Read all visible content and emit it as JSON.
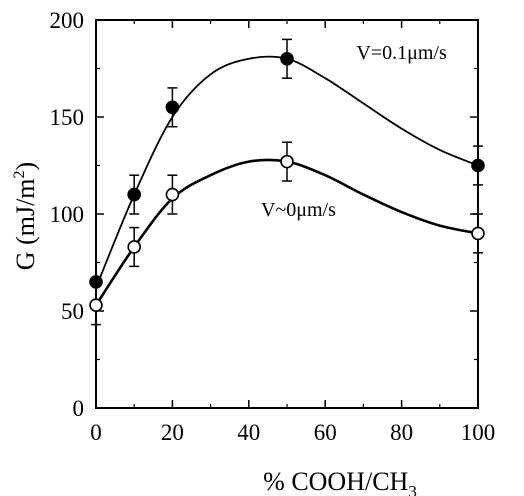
{
  "chart_data": {
    "type": "scatter",
    "x_ticks": [
      0,
      20,
      40,
      60,
      80,
      100
    ],
    "y_ticks": [
      0,
      50,
      100,
      150,
      200
    ],
    "xlim": [
      0,
      100
    ],
    "ylim": [
      0,
      200
    ],
    "xlabel_parts": [
      "% COOH/CH",
      "3"
    ],
    "ylabel_parts": [
      "G (mJ/m",
      "2",
      ")"
    ],
    "grid": false,
    "series": [
      {
        "marker": "filled-circle",
        "x": [
          0,
          10,
          20,
          50,
          100
        ],
        "y": [
          65,
          110,
          155,
          180,
          125
        ],
        "err": [
          0,
          10,
          10,
          10,
          10
        ],
        "curve_x": [
          0,
          10,
          20,
          30,
          40,
          50,
          60,
          70,
          80,
          90,
          100
        ],
        "curve_y": [
          62,
          110,
          150,
          172,
          180,
          180,
          170,
          157,
          144,
          133,
          125
        ]
      },
      {
        "marker": "open-circle",
        "x": [
          0,
          10,
          20,
          50,
          100
        ],
        "y": [
          53,
          83,
          110,
          127,
          90
        ],
        "err": [
          10,
          10,
          10,
          10,
          10
        ],
        "curve_x": [
          0,
          10,
          20,
          30,
          40,
          50,
          60,
          70,
          80,
          90,
          100
        ],
        "curve_y": [
          53,
          83,
          108,
          120,
          127,
          127,
          120,
          110,
          101,
          94,
          90
        ]
      }
    ],
    "annotations": [
      {
        "text": "V=0.1μm/s",
        "x": 80,
        "y": 180
      },
      {
        "text": "V~0μm/s",
        "x": 53,
        "y": 99
      }
    ],
    "colors": {
      "line": "#000000",
      "background": "#ffffff"
    }
  }
}
